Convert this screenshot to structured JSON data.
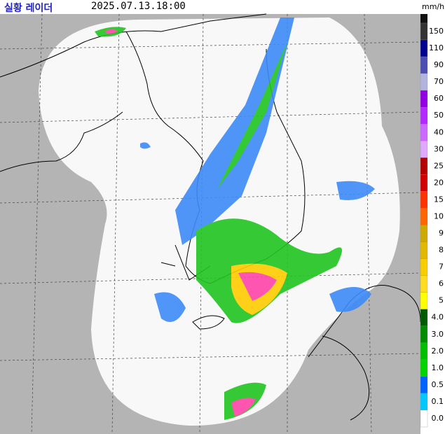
{
  "header": {
    "title": "실황 레이더",
    "timestamp": "2025.07.13.18:00"
  },
  "legend": {
    "unit": "mm/h",
    "levels": [
      {
        "label": "150",
        "color": "#333333"
      },
      {
        "label": "110",
        "color": "#000390"
      },
      {
        "label": "90",
        "color": "#4c4eb1"
      },
      {
        "label": "70",
        "color": "#b3b4de"
      },
      {
        "label": "60",
        "color": "#9300e4"
      },
      {
        "label": "50",
        "color": "#b329ff"
      },
      {
        "label": "40",
        "color": "#c969ff"
      },
      {
        "label": "30",
        "color": "#e0a9ff"
      },
      {
        "label": "25",
        "color": "#b40000"
      },
      {
        "label": "20",
        "color": "#d20000"
      },
      {
        "label": "15",
        "color": "#ff3300"
      },
      {
        "label": "10",
        "color": "#ff6600"
      },
      {
        "label": "9",
        "color": "#ccaa00"
      },
      {
        "label": "8",
        "color": "#e0b900"
      },
      {
        "label": "7",
        "color": "#f9cd00"
      },
      {
        "label": "6",
        "color": "#ffdc1f"
      },
      {
        "label": "5",
        "color": "#ffff00"
      },
      {
        "label": "4.0",
        "color": "#005a00"
      },
      {
        "label": "3.0",
        "color": "#008c00"
      },
      {
        "label": "2.0",
        "color": "#00be00"
      },
      {
        "label": "1.0",
        "color": "#00d500"
      },
      {
        "label": "0.5",
        "color": "#0062ff"
      },
      {
        "label": "0.1",
        "color": "#00c8ff"
      },
      {
        "label": "0.0",
        "color": "#ffffff"
      }
    ]
  }
}
